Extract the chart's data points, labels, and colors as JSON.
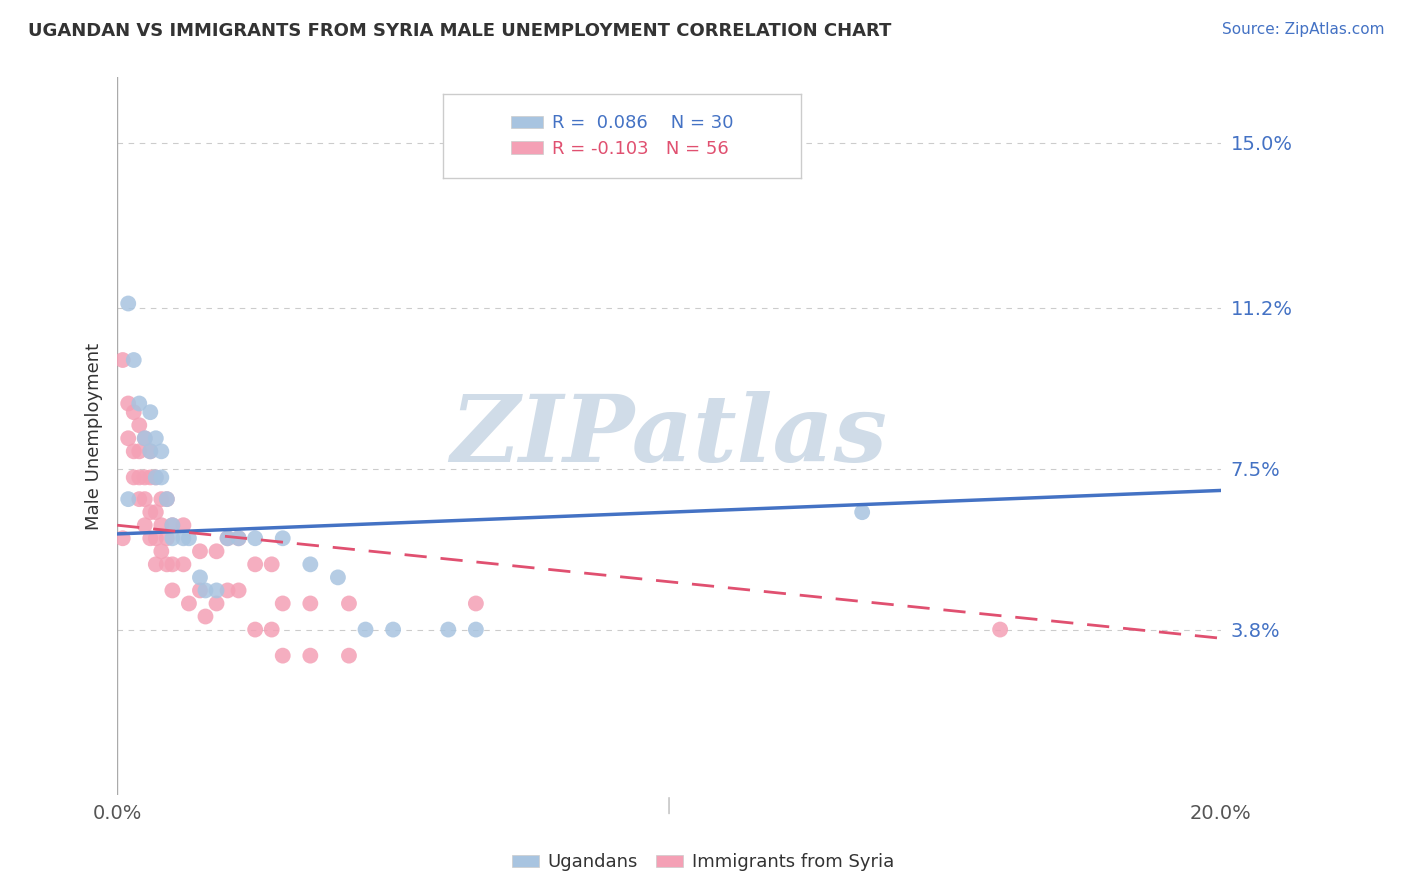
{
  "title": "UGANDAN VS IMMIGRANTS FROM SYRIA MALE UNEMPLOYMENT CORRELATION CHART",
  "source_text": "Source: ZipAtlas.com",
  "ylabel": "Male Unemployment",
  "xlim": [
    0.0,
    0.2
  ],
  "ylim": [
    0.0,
    0.165
  ],
  "xticks": [
    0.0,
    0.025,
    0.05,
    0.075,
    0.1,
    0.125,
    0.15,
    0.175,
    0.2
  ],
  "ytick_positions": [
    0.038,
    0.075,
    0.112,
    0.15
  ],
  "ytick_labels": [
    "3.8%",
    "7.5%",
    "11.2%",
    "15.0%"
  ],
  "grid_color": "#cccccc",
  "background_color": "#ffffff",
  "watermark_text": "ZIPatlas",
  "watermark_color": "#d0dce8",
  "ugandan_color": "#a8c4e0",
  "syria_color": "#f4a0b5",
  "ugandan_line_color": "#4472c4",
  "syria_line_color": "#e05070",
  "ugandan_R": 0.086,
  "ugandan_N": 30,
  "syria_R": -0.103,
  "syria_N": 56,
  "legend_R1_text": "R =  0.086",
  "legend_N1_text": "N = 30",
  "legend_R2_text": "R = -0.103",
  "legend_N2_text": "N = 56",
  "ugandan_line": [
    [
      0.0,
      0.06
    ],
    [
      0.2,
      0.07
    ]
  ],
  "syria_line": [
    [
      0.0,
      0.062
    ],
    [
      0.2,
      0.036
    ]
  ],
  "ugandan_points": [
    [
      0.002,
      0.113
    ],
    [
      0.003,
      0.1
    ],
    [
      0.004,
      0.09
    ],
    [
      0.005,
      0.082
    ],
    [
      0.006,
      0.088
    ],
    [
      0.006,
      0.079
    ],
    [
      0.007,
      0.082
    ],
    [
      0.007,
      0.073
    ],
    [
      0.008,
      0.079
    ],
    [
      0.008,
      0.073
    ],
    [
      0.009,
      0.068
    ],
    [
      0.01,
      0.062
    ],
    [
      0.01,
      0.059
    ],
    [
      0.012,
      0.059
    ],
    [
      0.013,
      0.059
    ],
    [
      0.015,
      0.05
    ],
    [
      0.016,
      0.047
    ],
    [
      0.018,
      0.047
    ],
    [
      0.02,
      0.059
    ],
    [
      0.022,
      0.059
    ],
    [
      0.025,
      0.059
    ],
    [
      0.03,
      0.059
    ],
    [
      0.035,
      0.053
    ],
    [
      0.04,
      0.05
    ],
    [
      0.045,
      0.038
    ],
    [
      0.05,
      0.038
    ],
    [
      0.06,
      0.038
    ],
    [
      0.065,
      0.038
    ],
    [
      0.135,
      0.065
    ],
    [
      0.002,
      0.068
    ]
  ],
  "syria_points": [
    [
      0.001,
      0.1
    ],
    [
      0.002,
      0.09
    ],
    [
      0.002,
      0.082
    ],
    [
      0.003,
      0.088
    ],
    [
      0.003,
      0.079
    ],
    [
      0.003,
      0.073
    ],
    [
      0.004,
      0.085
    ],
    [
      0.004,
      0.079
    ],
    [
      0.004,
      0.073
    ],
    [
      0.004,
      0.068
    ],
    [
      0.005,
      0.082
    ],
    [
      0.005,
      0.073
    ],
    [
      0.005,
      0.068
    ],
    [
      0.005,
      0.062
    ],
    [
      0.006,
      0.079
    ],
    [
      0.006,
      0.073
    ],
    [
      0.006,
      0.065
    ],
    [
      0.006,
      0.059
    ],
    [
      0.007,
      0.073
    ],
    [
      0.007,
      0.065
    ],
    [
      0.007,
      0.059
    ],
    [
      0.007,
      0.053
    ],
    [
      0.008,
      0.068
    ],
    [
      0.008,
      0.062
    ],
    [
      0.008,
      0.056
    ],
    [
      0.009,
      0.068
    ],
    [
      0.009,
      0.059
    ],
    [
      0.009,
      0.053
    ],
    [
      0.01,
      0.062
    ],
    [
      0.01,
      0.053
    ],
    [
      0.01,
      0.047
    ],
    [
      0.012,
      0.062
    ],
    [
      0.012,
      0.053
    ],
    [
      0.013,
      0.044
    ],
    [
      0.015,
      0.056
    ],
    [
      0.015,
      0.047
    ],
    [
      0.016,
      0.041
    ],
    [
      0.018,
      0.056
    ],
    [
      0.018,
      0.044
    ],
    [
      0.02,
      0.059
    ],
    [
      0.02,
      0.047
    ],
    [
      0.022,
      0.059
    ],
    [
      0.022,
      0.047
    ],
    [
      0.025,
      0.053
    ],
    [
      0.025,
      0.038
    ],
    [
      0.028,
      0.053
    ],
    [
      0.028,
      0.038
    ],
    [
      0.03,
      0.044
    ],
    [
      0.03,
      0.032
    ],
    [
      0.035,
      0.044
    ],
    [
      0.035,
      0.032
    ],
    [
      0.042,
      0.044
    ],
    [
      0.042,
      0.032
    ],
    [
      0.001,
      0.059
    ],
    [
      0.065,
      0.044
    ],
    [
      0.16,
      0.038
    ]
  ]
}
